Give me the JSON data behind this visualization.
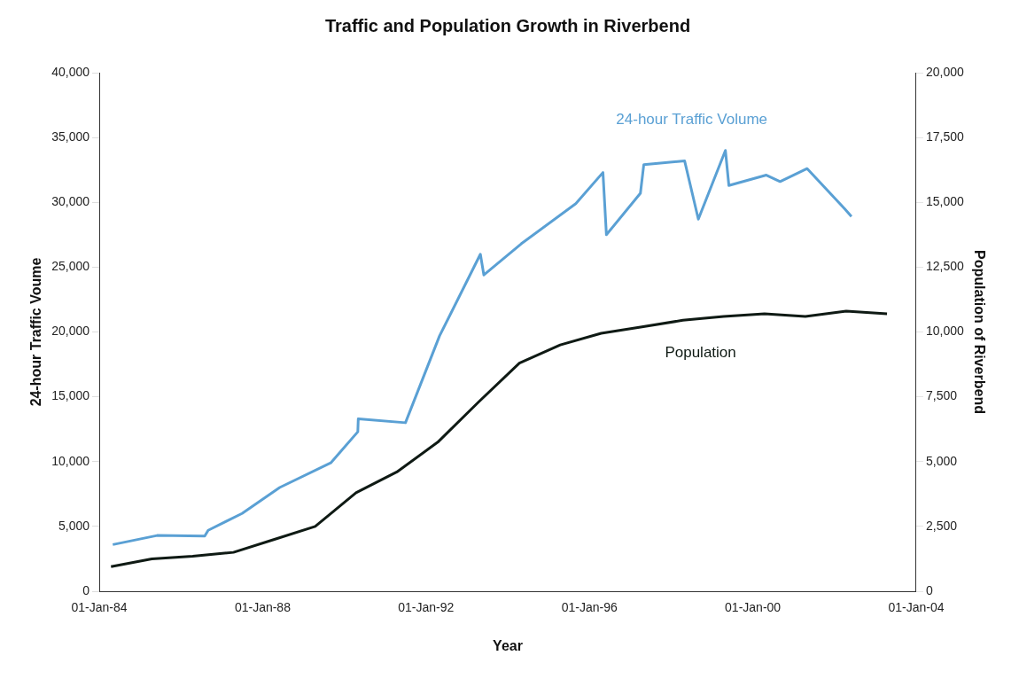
{
  "chart_data": {
    "type": "line",
    "title": "Traffic and Population Growth in Riverbend",
    "xlabel": "Year",
    "ylabel": "24-hour Traffic Voume",
    "y2label": "Population of Riverbend",
    "xlim": [
      "1984-01-01",
      "2004-01-01"
    ],
    "xticks": [
      {
        "value": "1984-01-01",
        "label": "01-Jan-84"
      },
      {
        "value": "1988-01-01",
        "label": "01-Jan-88"
      },
      {
        "value": "1992-01-01",
        "label": "01-Jan-92"
      },
      {
        "value": "1996-01-01",
        "label": "01-Jan-96"
      },
      {
        "value": "2000-01-01",
        "label": "01-Jan-00"
      },
      {
        "value": "2004-01-01",
        "label": "01-Jan-04"
      }
    ],
    "ylim": [
      0,
      40000
    ],
    "yticks": [
      {
        "value": 0,
        "label": "0"
      },
      {
        "value": 5000,
        "label": "5,000"
      },
      {
        "value": 10000,
        "label": "10,000"
      },
      {
        "value": 15000,
        "label": "15,000"
      },
      {
        "value": 20000,
        "label": "20,000"
      },
      {
        "value": 25000,
        "label": "25,000"
      },
      {
        "value": 30000,
        "label": "30,000"
      },
      {
        "value": 35000,
        "label": "35,000"
      },
      {
        "value": 40000,
        "label": "40,000"
      }
    ],
    "y2lim": [
      0,
      20000
    ],
    "y2ticks": [
      {
        "value": 0,
        "label": "0"
      },
      {
        "value": 2500,
        "label": "2,500"
      },
      {
        "value": 5000,
        "label": "5,000"
      },
      {
        "value": 7500,
        "label": "7,500"
      },
      {
        "value": 10000,
        "label": "10,000"
      },
      {
        "value": 12500,
        "label": "12,500"
      },
      {
        "value": 15000,
        "label": "15,000"
      },
      {
        "value": 17500,
        "label": "17,500"
      },
      {
        "value": 20000,
        "label": "20,000"
      }
    ],
    "grid": false,
    "legend": false,
    "marker": "none",
    "line_style": "solid",
    "series": [
      {
        "name": "24-hour Traffic Volume",
        "color": "#5aa0d4",
        "x": [
          "1984-05-01",
          "1985-06-01",
          "1986-08-01",
          "1986-09-01",
          "1987-07-01",
          "1988-06-01",
          "1989-09-01",
          "1990-05-01",
          "1990-05-05",
          "1991-07-01",
          "1992-05-01",
          "1993-05-01",
          "1993-06-01",
          "1994-05-01",
          "1995-09-01",
          "1996-05-01",
          "1996-06-01",
          "1997-04-01",
          "1997-05-01",
          "1998-05-01",
          "1998-09-01",
          "1999-05-01",
          "1999-06-01",
          "2000-05-01",
          "2000-09-01",
          "2001-05-01",
          "2002-04-01",
          "2002-06-01"
        ],
        "values": [
          3600,
          4300,
          4250,
          4700,
          6000,
          8000,
          9900,
          12300,
          13300,
          13000,
          19700,
          26000,
          24400,
          26800,
          29900,
          32300,
          27500,
          30700,
          32900,
          33200,
          28700,
          34000,
          31300,
          32100,
          31600,
          32600,
          29500,
          28900
        ]
      },
      {
        "name": "Population",
        "color": "#0f1a14",
        "axis": "y2",
        "x": [
          "1984-04-15",
          "1985-04-15",
          "1986-04-15",
          "1987-04-15",
          "1988-04-15",
          "1989-04-15",
          "1990-04-15",
          "1991-04-15",
          "1992-04-15",
          "1993-04-15",
          "1994-04-15",
          "1995-04-15",
          "1996-04-15",
          "1997-04-15",
          "1998-04-15",
          "1999-04-15",
          "2000-04-15",
          "2001-04-15",
          "2002-04-15",
          "2003-04-15"
        ],
        "values": [
          950,
          1250,
          1350,
          1500,
          2000,
          2500,
          3800,
          4600,
          5750,
          7300,
          8800,
          9500,
          9950,
          10200,
          10450,
          10600,
          10700,
          10600,
          10800,
          10700
        ]
      }
    ]
  }
}
